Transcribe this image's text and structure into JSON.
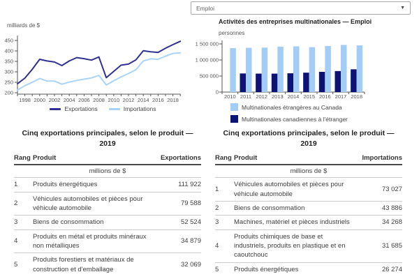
{
  "header": {
    "dropdown_value": "Emploi",
    "bar_chart_title": "Activités des entreprises multinationales — Emploi"
  },
  "chart_data": [
    {
      "type": "line",
      "ylabel": "milliards de $",
      "x": [
        1997,
        1998,
        1999,
        2000,
        2001,
        2002,
        2003,
        2004,
        2005,
        2006,
        2007,
        2008,
        2009,
        2010,
        2011,
        2012,
        2013,
        2014,
        2015,
        2016,
        2017,
        2018,
        2019
      ],
      "series": [
        {
          "name": "Exportations",
          "color": "#2e3192",
          "values": [
            243,
            270,
            312,
            360,
            352,
            347,
            330,
            352,
            368,
            363,
            356,
            371,
            272,
            302,
            332,
            337,
            357,
            401,
            396,
            393,
            413,
            430,
            446
          ]
        },
        {
          "name": "Importations",
          "color": "#a9d4f7",
          "values": [
            213,
            234,
            250,
            268,
            256,
            256,
            241,
            251,
            259,
            265,
            271,
            283,
            237,
            257,
            276,
            292,
            310,
            352,
            362,
            360,
            375,
            388,
            391
          ]
        }
      ],
      "ylim": [
        200,
        450
      ],
      "yticks": [
        200,
        250,
        300,
        350,
        400,
        450
      ],
      "xticks": [
        1998,
        2000,
        2002,
        2004,
        2006,
        2008,
        2010,
        2012,
        2014,
        2016,
        2018
      ],
      "legend_position": "bottom",
      "grid": false
    },
    {
      "type": "bar",
      "title": "Activités des entreprises multinationales — Emploi",
      "ylabel": "personnes",
      "categories": [
        "2010",
        "2011",
        "2012",
        "2013",
        "2014",
        "2015",
        "2016",
        "2017",
        "2018"
      ],
      "series": [
        {
          "name": "Multinationales étrangères au Canada",
          "color": "#a3cdf4",
          "values": [
            1370000,
            1380000,
            1385000,
            1415000,
            1425000,
            1400000,
            1435000,
            1470000,
            1455000
          ]
        },
        {
          "name": "Multinationales canadiennes à l'étranger",
          "color": "#0d1275",
          "values": [
            null,
            580000,
            575000,
            575000,
            585000,
            605000,
            630000,
            655000,
            710000
          ]
        }
      ],
      "ylim": [
        0,
        1500000
      ],
      "yticks": [
        {
          "v": 0,
          "label": "0"
        },
        {
          "v": 500000,
          "label": "500 000"
        },
        {
          "v": 1000000,
          "label": "1 000 000"
        },
        {
          "v": 1500000,
          "label": "1 500 000"
        }
      ],
      "legend_position": "bottom",
      "grid": false
    }
  ],
  "tables": {
    "exports": {
      "title": "Cinq exportations principales, selon le produit — 2019",
      "columns": [
        "Rang",
        "Produit",
        "Exportations"
      ],
      "unit": "millions de $",
      "rows": [
        [
          "1",
          "Produits énergétiques",
          "111 922"
        ],
        [
          "2",
          "Véhicules automobiles et pièces pour véhicule automobile",
          "79 588"
        ],
        [
          "3",
          "Biens de consommation",
          "52 524"
        ],
        [
          "4",
          "Produits en métal et produits minéraux non métalliques",
          "34 879"
        ],
        [
          "5",
          "Produits forestiers et matériaux de construction et d'emballage",
          "32 069"
        ]
      ]
    },
    "imports": {
      "title": "Cinq exportations principales, selon le produit — 2019",
      "columns": [
        "Rang",
        "Produit",
        "Importations"
      ],
      "unit": "millions de $",
      "rows": [
        [
          "1",
          "Véhicules automobiles et pièces pour véhicule automobile",
          "73 027"
        ],
        [
          "2",
          "Biens de consommation",
          "43 886"
        ],
        [
          "3",
          "Machines, matériel et pièces industriels",
          "34 268"
        ],
        [
          "4",
          "Produits chimiques de base et industriels, produits en plastique et en caoutchouc",
          "31 685"
        ],
        [
          "5",
          "Produits énergétiques",
          "26 274"
        ]
      ]
    }
  },
  "colors": {
    "export_line": "#2e3192",
    "import_line": "#a9d4f7",
    "bar_light": "#a3cdf4",
    "bar_dark": "#0d1275",
    "axis": "#555555"
  }
}
